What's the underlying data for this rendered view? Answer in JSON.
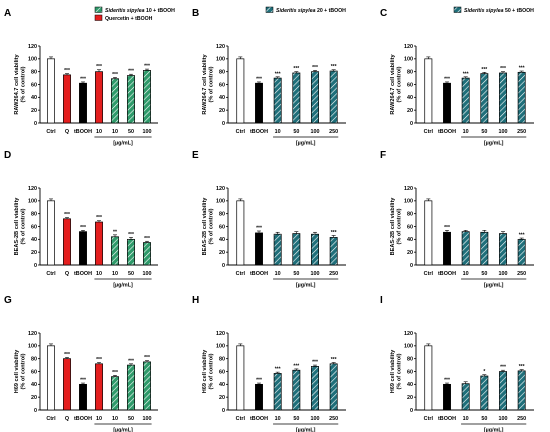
{
  "patterns": {
    "green": "#2e9a6a",
    "teal": "#1f6f7a"
  },
  "chart_data": [
    {
      "id": "A",
      "type": "bar",
      "ylabel_lines": [
        "RAW264.7 cell viability",
        "(% of control)"
      ],
      "ylim": [
        0,
        120
      ],
      "yticks": [
        0,
        20,
        40,
        60,
        80,
        100,
        120
      ],
      "categories": [
        "Ctrl",
        "Q",
        "tBOOH",
        "10",
        "10",
        "50",
        "100"
      ],
      "values": [
        100,
        75,
        62,
        80,
        69,
        74,
        82
      ],
      "errors": [
        3,
        2,
        2,
        3,
        2,
        2,
        2
      ],
      "stars": [
        "",
        "***",
        "***",
        "***",
        "***",
        "***",
        "***"
      ],
      "fills": [
        "white",
        "red",
        "black",
        "red",
        "green",
        "green",
        "green"
      ],
      "unit": "[µg/mL]",
      "bracket": [
        3,
        6
      ],
      "legend": [
        {
          "label_italic": "Sideritis sipylea",
          "label_rest": " 10 + tBOOH",
          "fill": "green"
        },
        {
          "label_italic": "",
          "label_rest": "Quercetin + tBOOH",
          "fill": "red"
        }
      ]
    },
    {
      "id": "B",
      "type": "bar",
      "ylabel_lines": [
        "RAW264.7 cell viability",
        "(% of control)"
      ],
      "ylim": [
        0,
        120
      ],
      "yticks": [
        0,
        20,
        40,
        60,
        80,
        100,
        120
      ],
      "categories": [
        "Ctrl",
        "tBOOH",
        "10",
        "50",
        "100",
        "250"
      ],
      "values": [
        100,
        62,
        70,
        78,
        80,
        81
      ],
      "errors": [
        3,
        2,
        2,
        2,
        2,
        2
      ],
      "stars": [
        "",
        "***",
        "***",
        "***",
        "***",
        "***"
      ],
      "fills": [
        "white",
        "black",
        "teal",
        "teal",
        "teal",
        "teal"
      ],
      "unit": "[µg/mL]",
      "bracket": [
        2,
        5
      ],
      "legend": [
        {
          "label_italic": "Sideritis sipylea",
          "label_rest": " 20 + tBOOH",
          "fill": "teal"
        }
      ]
    },
    {
      "id": "C",
      "type": "bar",
      "ylabel_lines": [
        "RAW264.7 cell viability",
        "(% of control)"
      ],
      "ylim": [
        0,
        120
      ],
      "yticks": [
        0,
        20,
        40,
        60,
        80,
        100,
        120
      ],
      "categories": [
        "Ctrl",
        "tBOOH",
        "10",
        "50",
        "100",
        "250"
      ],
      "values": [
        100,
        62,
        70,
        77,
        78,
        79
      ],
      "errors": [
        3,
        2,
        2,
        2,
        2,
        2
      ],
      "stars": [
        "",
        "***",
        "***",
        "***",
        "***",
        "***"
      ],
      "fills": [
        "white",
        "black",
        "teal",
        "teal",
        "teal",
        "teal"
      ],
      "unit": "[µg/mL]",
      "bracket": [
        2,
        5
      ],
      "legend": [
        {
          "label_italic": "Sideritis sipylea",
          "label_rest": " 50 + tBOOH",
          "fill": "teal"
        }
      ]
    },
    {
      "id": "D",
      "type": "bar",
      "ylabel_lines": [
        "BEAS-2B cell viability",
        "(% of control)"
      ],
      "ylim": [
        0,
        120
      ],
      "yticks": [
        0,
        20,
        40,
        60,
        80,
        100,
        120
      ],
      "categories": [
        "Ctrl",
        "Q",
        "tBOOH",
        "10",
        "10",
        "50",
        "100"
      ],
      "values": [
        100,
        72,
        52,
        67,
        44,
        40,
        35
      ],
      "errors": [
        3,
        2,
        2,
        2,
        3,
        3,
        2
      ],
      "stars": [
        "",
        "***",
        "***",
        "***",
        "**",
        "***",
        "***"
      ],
      "fills": [
        "white",
        "red",
        "black",
        "red",
        "green",
        "green",
        "green"
      ],
      "unit": "[µg/mL]",
      "bracket": [
        3,
        6
      ],
      "legend": []
    },
    {
      "id": "E",
      "type": "bar",
      "ylabel_lines": [
        "BEAS-2B cell viability",
        "(% of control)"
      ],
      "ylim": [
        0,
        120
      ],
      "yticks": [
        0,
        20,
        40,
        60,
        80,
        100,
        120
      ],
      "categories": [
        "Ctrl",
        "tBOOH",
        "10",
        "50",
        "100",
        "250"
      ],
      "values": [
        100,
        50,
        48,
        49,
        48,
        43
      ],
      "errors": [
        3,
        3,
        3,
        3,
        3,
        3
      ],
      "stars": [
        "",
        "***",
        "",
        "",
        "",
        "***"
      ],
      "fills": [
        "white",
        "black",
        "teal",
        "teal",
        "teal",
        "teal"
      ],
      "unit": "[µg/mL]",
      "bracket": [
        2,
        5
      ],
      "legend": []
    },
    {
      "id": "F",
      "type": "bar",
      "ylabel_lines": [
        "BEAS-2B cell viability",
        "(% of control)"
      ],
      "ylim": [
        0,
        120
      ],
      "yticks": [
        0,
        20,
        40,
        60,
        80,
        100,
        120
      ],
      "categories": [
        "Ctrl",
        "tBOOH",
        "10",
        "50",
        "100",
        "250"
      ],
      "values": [
        100,
        51,
        52,
        51,
        49,
        40
      ],
      "errors": [
        3,
        3,
        2,
        3,
        3,
        2
      ],
      "stars": [
        "",
        "***",
        "",
        "",
        "",
        "***"
      ],
      "fills": [
        "white",
        "black",
        "teal",
        "teal",
        "teal",
        "teal"
      ],
      "unit": "[µg/mL]",
      "bracket": [
        2,
        5
      ],
      "legend": []
    },
    {
      "id": "G",
      "type": "bar",
      "ylabel_lines": [
        "H69 cell viability",
        "(% of control)"
      ],
      "ylim": [
        0,
        120
      ],
      "yticks": [
        0,
        20,
        40,
        60,
        80,
        100,
        120
      ],
      "categories": [
        "Ctrl",
        "Q",
        "tBOOH",
        "10",
        "10",
        "50",
        "100"
      ],
      "values": [
        100,
        80,
        40,
        72,
        52,
        70,
        75
      ],
      "errors": [
        3,
        2,
        2,
        2,
        2,
        2,
        2
      ],
      "stars": [
        "",
        "***",
        "***",
        "***",
        "***",
        "***",
        "***"
      ],
      "fills": [
        "white",
        "red",
        "black",
        "red",
        "green",
        "green",
        "green"
      ],
      "unit": "[µg/mL]",
      "bracket": [
        3,
        6
      ],
      "legend": []
    },
    {
      "id": "H",
      "type": "bar",
      "ylabel_lines": [
        "H69 cell viability",
        "(% of control)"
      ],
      "ylim": [
        0,
        120
      ],
      "yticks": [
        0,
        20,
        40,
        60,
        80,
        100,
        120
      ],
      "categories": [
        "Ctrl",
        "tBOOH",
        "10",
        "50",
        "100",
        "250"
      ],
      "values": [
        100,
        40,
        57,
        62,
        68,
        72
      ],
      "errors": [
        3,
        2,
        2,
        2,
        2,
        2
      ],
      "stars": [
        "",
        "***",
        "***",
        "***",
        "***",
        "***"
      ],
      "fills": [
        "white",
        "black",
        "teal",
        "teal",
        "teal",
        "teal"
      ],
      "unit": "[µg/mL]",
      "bracket": [
        2,
        5
      ],
      "legend": []
    },
    {
      "id": "I",
      "type": "bar",
      "ylabel_lines": [
        "H69 cell viability",
        "(% of control)"
      ],
      "ylim": [
        0,
        120
      ],
      "yticks": [
        0,
        20,
        40,
        60,
        80,
        100,
        120
      ],
      "categories": [
        "Ctrl",
        "tBOOH",
        "10",
        "50",
        "100",
        "250"
      ],
      "values": [
        100,
        40,
        41,
        53,
        60,
        61
      ],
      "errors": [
        3,
        2,
        3,
        2,
        2,
        2
      ],
      "stars": [
        "",
        "***",
        "",
        "*",
        "***",
        "***"
      ],
      "fills": [
        "white",
        "black",
        "teal",
        "teal",
        "teal",
        "teal"
      ],
      "unit": "[µg/mL]",
      "bracket": [
        2,
        5
      ],
      "legend": []
    }
  ]
}
